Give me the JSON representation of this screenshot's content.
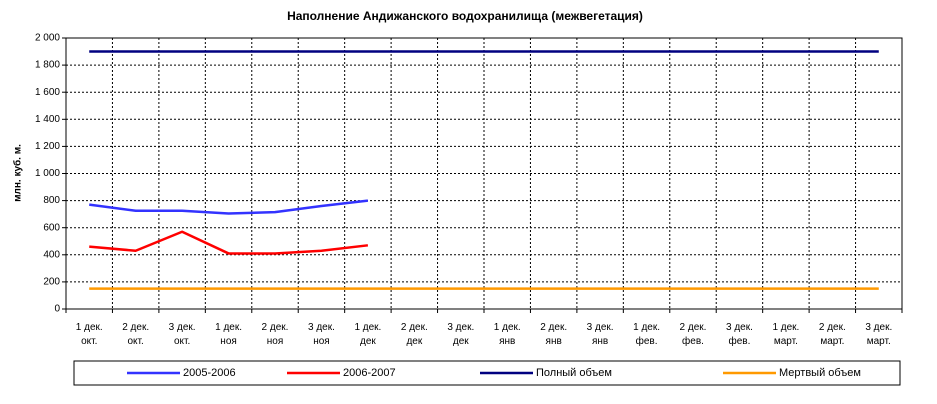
{
  "chart_data": {
    "type": "line",
    "title": "Наполнение Андижанского водохранилища (межвегетация)",
    "ylabel": "млн. куб. м.",
    "categories": [
      [
        "1 дек.",
        "окт."
      ],
      [
        "2 дек.",
        "окт."
      ],
      [
        "3 дек.",
        "окт."
      ],
      [
        "1 дек.",
        "ноя"
      ],
      [
        "2 дек.",
        "ноя"
      ],
      [
        "3 дек.",
        "ноя"
      ],
      [
        "1 дек.",
        "дек"
      ],
      [
        "2 дек.",
        "дек"
      ],
      [
        "3 дек.",
        "дек"
      ],
      [
        "1 дек.",
        "янв"
      ],
      [
        "2 дек.",
        "янв"
      ],
      [
        "3 дек.",
        "янв"
      ],
      [
        "1 дек.",
        "фев."
      ],
      [
        "2 дек.",
        "фев."
      ],
      [
        "3 дек.",
        "фев."
      ],
      [
        "1 дек.",
        "март."
      ],
      [
        "2 дек.",
        "март."
      ],
      [
        "3 дек.",
        "март."
      ]
    ],
    "series": [
      {
        "name": "2005-2006",
        "color": "#3333ff",
        "values": [
          770,
          725,
          725,
          705,
          715,
          760,
          800,
          null,
          null,
          null,
          null,
          null,
          null,
          null,
          null,
          null,
          null,
          null
        ]
      },
      {
        "name": "2006-2007",
        "color": "#ff0000",
        "values": [
          460,
          430,
          570,
          410,
          410,
          430,
          470,
          null,
          null,
          null,
          null,
          null,
          null,
          null,
          null,
          null,
          null,
          null
        ]
      },
      {
        "name": "Полный объем",
        "color": "#000080",
        "values": [
          1900,
          1900,
          1900,
          1900,
          1900,
          1900,
          1900,
          1900,
          1900,
          1900,
          1900,
          1900,
          1900,
          1900,
          1900,
          1900,
          1900,
          1900
        ]
      },
      {
        "name": "Мертвый объем",
        "color": "#ff9900",
        "values": [
          150,
          150,
          150,
          150,
          150,
          150,
          150,
          150,
          150,
          150,
          150,
          150,
          150,
          150,
          150,
          150,
          150,
          150
        ]
      }
    ],
    "ylim": [
      0,
      2000
    ],
    "yticks": [
      0,
      200,
      400,
      600,
      800,
      {
        "value": 1000,
        "label": "1 000"
      },
      {
        "value": 1200,
        "label": "1 200"
      },
      {
        "value": 1400,
        "label": "1 400"
      },
      {
        "value": 1600,
        "label": "1 600"
      },
      {
        "value": 1800,
        "label": "1 800"
      },
      {
        "value": 2000,
        "label": "2 000"
      }
    ],
    "grid": true,
    "legend": "bottom"
  }
}
